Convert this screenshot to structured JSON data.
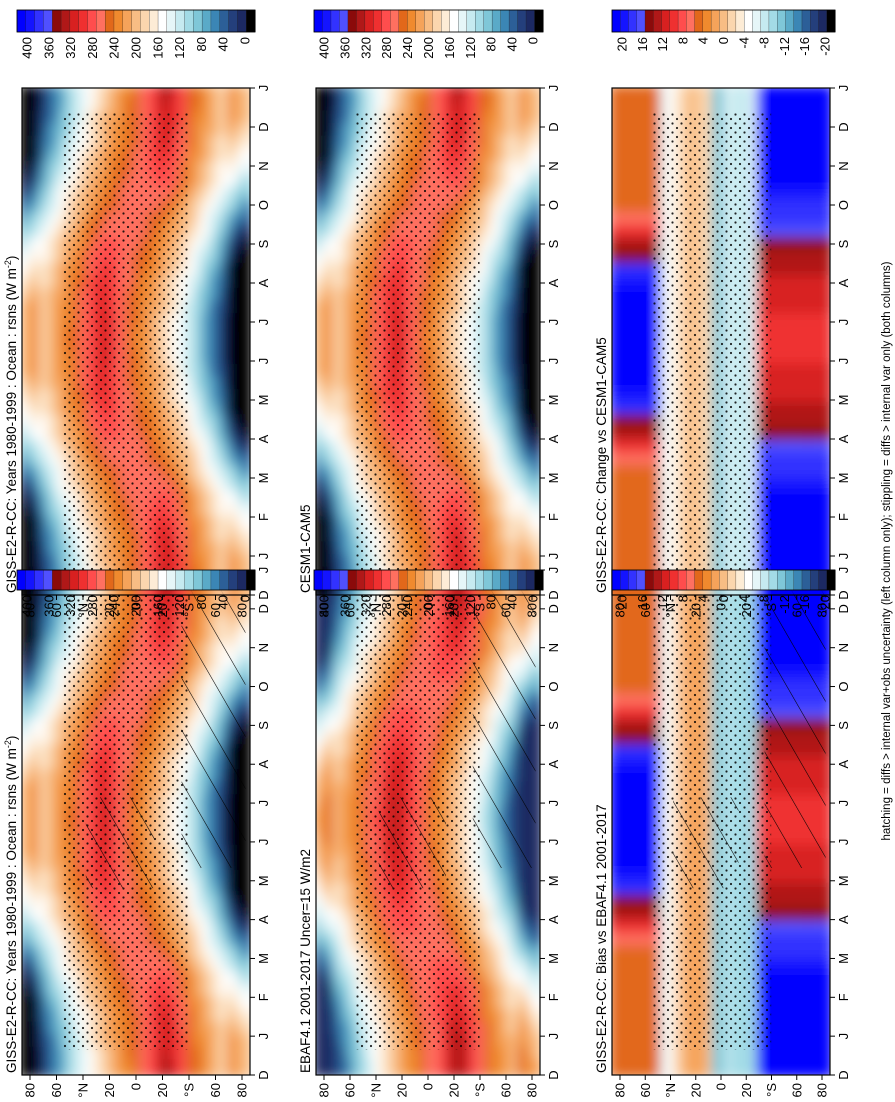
{
  "figure": {
    "footnote": "hatching = diffs > internal var+obs uncertainty (left column only); stippling = diffs > internal var only (both columns)",
    "month_ticks": [
      "D",
      "J",
      "F",
      "M",
      "A",
      "M",
      "J",
      "J",
      "A",
      "S",
      "O",
      "N",
      "D",
      "J"
    ],
    "lat_ticks": [
      "80",
      "60",
      "°N",
      "20",
      "0",
      "20",
      "°S",
      "60",
      "80"
    ]
  },
  "colorbars": {
    "absolute": {
      "labels": [
        "400",
        "360",
        "320",
        "280",
        "240",
        "200",
        "160",
        "120",
        "80",
        "40",
        "0"
      ],
      "colors": [
        "#0000ff",
        "#1414ff",
        "#3232ff",
        "#5050ff",
        "#8b0a0a",
        "#b01818",
        "#d82020",
        "#ef3030",
        "#ff4d4d",
        "#ff7060",
        "#e2681a",
        "#f08a2e",
        "#f5a35a",
        "#f8bd84",
        "#fbd6ae",
        "#fdecd6",
        "#ffffff",
        "#e6f6f8",
        "#c6eaf0",
        "#a3dbe6",
        "#7fc7d8",
        "#5aaac8",
        "#3b86b5",
        "#2c5f98",
        "#243f7c",
        "#1c2962",
        "#000000"
      ]
    },
    "difference": {
      "labels": [
        "20",
        "16",
        "12",
        "8",
        "4",
        "0",
        "-4",
        "-8",
        "-12",
        "-16",
        "-20"
      ],
      "colors": [
        "#0000ff",
        "#1414ff",
        "#3232ff",
        "#5050ff",
        "#8b0a0a",
        "#b01818",
        "#d82020",
        "#ef3030",
        "#ff4d4d",
        "#ff7060",
        "#e2681a",
        "#f08a2e",
        "#f5a35a",
        "#f8bd84",
        "#fbd6ae",
        "#fdecd6",
        "#ffffff",
        "#e6f6f8",
        "#c6eaf0",
        "#a3dbe6",
        "#7fc7d8",
        "#5aaac8",
        "#3b86b5",
        "#2c5f98",
        "#243f7c",
        "#1c2962",
        "#000000"
      ]
    }
  },
  "chart_data": [
    {
      "id": "p-model",
      "type": "heatmap",
      "title": "GISS-E2-R-CC: Years 1980-1999 : Ocean : rsns (W m",
      "title_sup": "-2",
      "title_end": ")",
      "xlabel": "",
      "ylabel": "",
      "colorbar": "absolute",
      "hatching": true,
      "stippling": true,
      "ylim": [
        -90,
        90
      ],
      "clim": [
        0,
        400
      ]
    },
    {
      "id": "p-obs",
      "type": "heatmap",
      "title": "EBAF4.1 2001-2017 Uncer=15 W/m2",
      "xlabel": "",
      "ylabel": "",
      "colorbar": "absolute",
      "hatching": true,
      "stippling": true,
      "ylim": [
        -90,
        90
      ],
      "clim": [
        0,
        400
      ]
    },
    {
      "id": "p-bias",
      "type": "heatmap",
      "title": "GISS-E2-R-CC: Bias vs EBAF4.1 2001-2017",
      "xlabel": "",
      "ylabel": "",
      "colorbar": "difference",
      "hatching": true,
      "stippling": true,
      "ylim": [
        -90,
        90
      ],
      "clim": [
        -20,
        20
      ]
    },
    {
      "id": "p-model2",
      "type": "heatmap",
      "title": "GISS-E2-R-CC: Years 1980-1999 : Ocean : rsns (W m",
      "title_sup": "-2",
      "title_end": ")",
      "xlabel": "",
      "ylabel": "",
      "colorbar": "absolute",
      "hatching": false,
      "stippling": true,
      "ylim": [
        -90,
        90
      ],
      "clim": [
        0,
        400
      ]
    },
    {
      "id": "p-cesm",
      "type": "heatmap",
      "title": "CESM1-CAM5",
      "xlabel": "",
      "ylabel": "",
      "colorbar": "absolute",
      "hatching": false,
      "stippling": true,
      "ylim": [
        -90,
        90
      ],
      "clim": [
        0,
        400
      ]
    },
    {
      "id": "p-change",
      "type": "heatmap",
      "title": "GISS-E2-R-CC: Change vs CESM1-CAM5",
      "xlabel": "",
      "ylabel": "",
      "colorbar": "difference",
      "hatching": false,
      "stippling": true,
      "ylim": [
        -90,
        90
      ],
      "clim": [
        -20,
        20
      ]
    }
  ]
}
